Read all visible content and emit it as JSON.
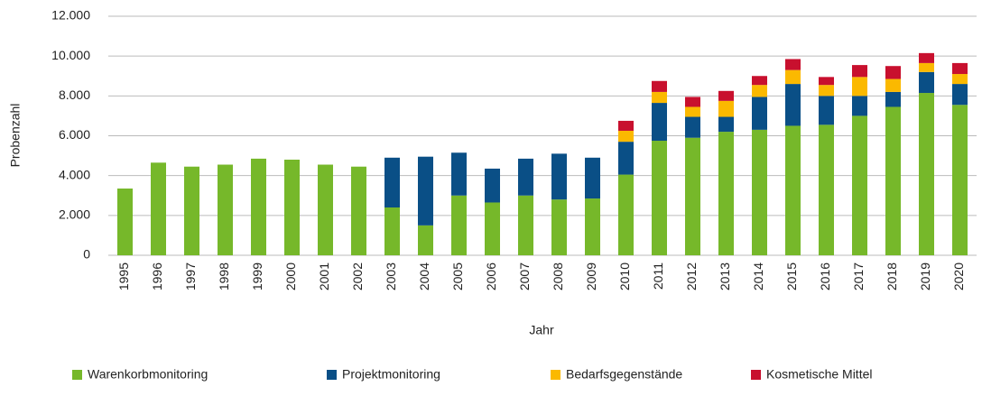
{
  "chart_data": {
    "type": "stacked_bar",
    "x_label": "Jahr",
    "y_label": "Probenzahl",
    "categories": [
      "1995",
      "1996",
      "1997",
      "1998",
      "1999",
      "2000",
      "2001",
      "2002",
      "2003",
      "2004",
      "2005",
      "2006",
      "2007",
      "2008",
      "2009",
      "2010",
      "2011",
      "2012",
      "2013",
      "2014",
      "2015",
      "2016",
      "2017",
      "2018",
      "2019",
      "2020"
    ],
    "series": [
      {
        "name": "Warenkorbmonitoring",
        "color": "#76b82a",
        "values": [
          3350,
          4650,
          4450,
          4550,
          4850,
          4800,
          4550,
          4450,
          2400,
          1500,
          3000,
          2650,
          3000,
          2800,
          2850,
          4050,
          5750,
          5900,
          6200,
          6300,
          6500,
          6550,
          7000,
          7450,
          8150,
          7550
        ]
      },
      {
        "name": "Projektmonitoring",
        "color": "#0a4f86",
        "values": [
          null,
          null,
          null,
          null,
          null,
          null,
          null,
          null,
          2500,
          3450,
          2150,
          1700,
          1850,
          2300,
          2050,
          1650,
          1900,
          1050,
          750,
          1650,
          2100,
          1450,
          1000,
          750,
          1050,
          1050
        ]
      },
      {
        "name": "Bedarfsgegenstände",
        "color": "#fbb900",
        "values": [
          null,
          null,
          null,
          null,
          null,
          null,
          null,
          null,
          null,
          null,
          null,
          null,
          null,
          null,
          null,
          550,
          550,
          500,
          800,
          600,
          700,
          550,
          950,
          650,
          450,
          500
        ]
      },
      {
        "name": "Kosmetische Mittel",
        "color": "#c8102e",
        "values": [
          null,
          null,
          null,
          null,
          null,
          null,
          null,
          null,
          null,
          null,
          null,
          null,
          null,
          null,
          null,
          500,
          550,
          500,
          500,
          450,
          550,
          400,
          600,
          650,
          500,
          550
        ]
      }
    ],
    "ylim": [
      0,
      12000
    ],
    "yticks": [
      0,
      {
        "value": 2000,
        "label": "2.000"
      },
      {
        "value": 4000,
        "label": "4.000"
      },
      {
        "value": 6000,
        "label": "6.000"
      },
      {
        "value": 8000,
        "label": "8.000"
      },
      {
        "value": 10000,
        "label": "10.000"
      },
      {
        "value": 12000,
        "label": "12.000"
      }
    ],
    "grid": true,
    "legend": "bottom"
  }
}
